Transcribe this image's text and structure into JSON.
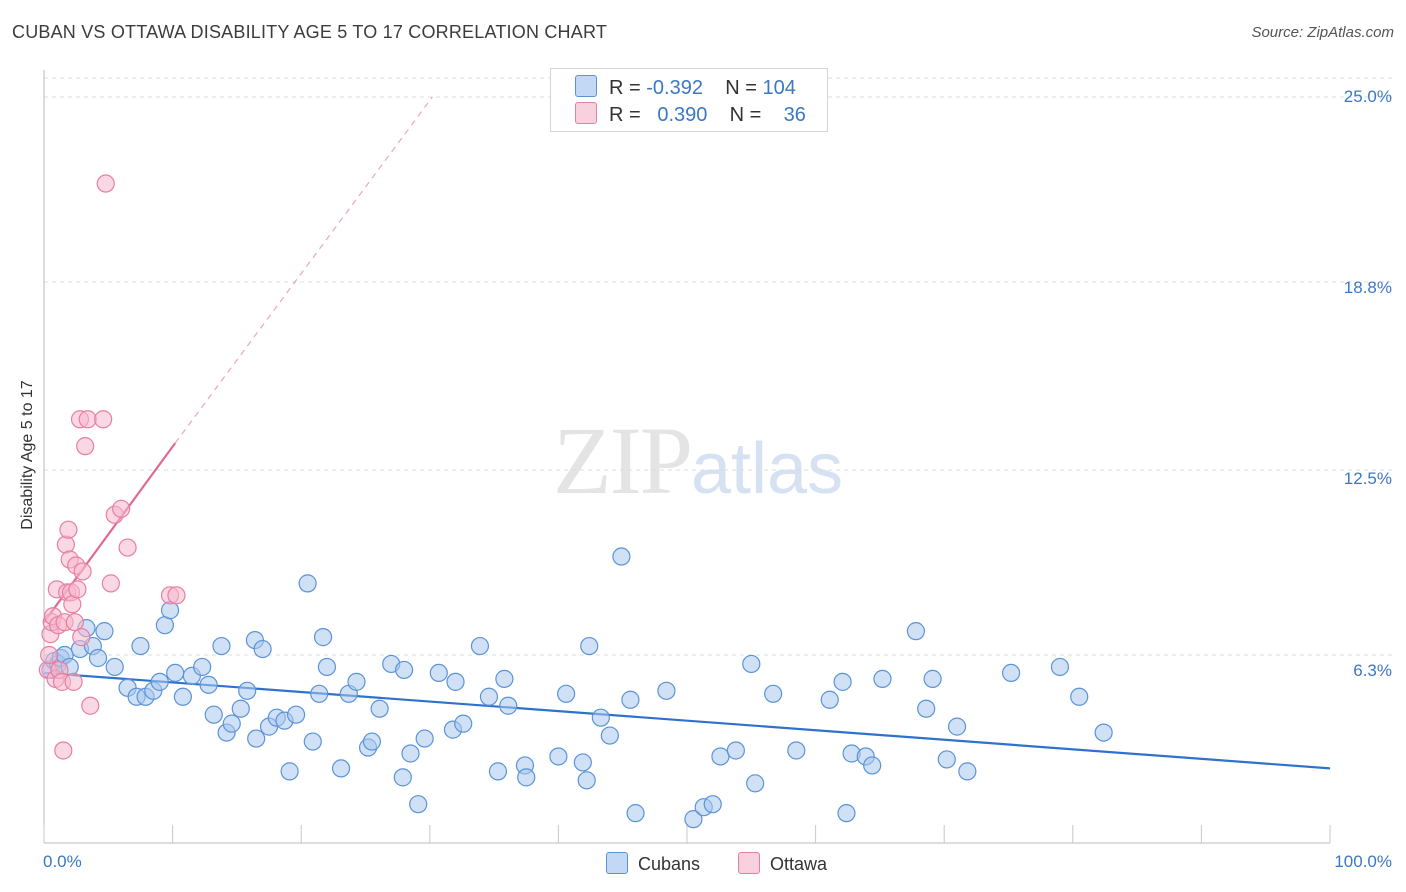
{
  "header": {
    "title": "CUBAN VS OTTAWA DISABILITY AGE 5 TO 17 CORRELATION CHART",
    "source": "Source: ZipAtlas.com"
  },
  "watermark": {
    "zip": "ZIP",
    "atlas": "atlas"
  },
  "legend": {
    "rows": [
      {
        "r_label": "R =",
        "r_value": "-0.392",
        "n_label": "N =",
        "n_value": "104",
        "color": "#a9c8ef"
      },
      {
        "r_label": "R =",
        "r_value": "0.390",
        "n_label": "N =",
        "n_value": "36",
        "color": "#f5b8cc"
      }
    ]
  },
  "bottom_legend": [
    {
      "label": "Cubans",
      "color": "#a9c8ef"
    },
    {
      "label": "Ottawa",
      "color": "#f5b8cc"
    }
  ],
  "colors": {
    "cubans_fill": "#a9c8ef",
    "cubans_stroke": "#5b93d8",
    "cubans_line": "#2f72cc",
    "ottawa_fill": "#f5b8cc",
    "ottawa_stroke": "#e77fa3",
    "ottawa_line": "#e06a95",
    "grid": "#dcdcdc",
    "axis_label": "#3b78c4"
  },
  "chart_data": {
    "type": "scatter",
    "title": "CUBAN VS OTTAWA DISABILITY AGE 5 TO 17 CORRELATION CHART",
    "xlabel": "",
    "ylabel": "Disability Age 5 to 17",
    "xlim": [
      0,
      100
    ],
    "ylim": [
      0,
      25.0
    ],
    "x_tick_labels": [
      "0.0%",
      "100.0%"
    ],
    "y_ticks": [
      6.3,
      12.5,
      18.8,
      25.0
    ],
    "y_tick_labels": [
      "6.3%",
      "12.5%",
      "18.8%",
      "25.0%"
    ],
    "grid": true,
    "legend_position": "top-center",
    "series": [
      {
        "name": "Cubans",
        "points": [
          [
            0.5,
            5.8
          ],
          [
            0.8,
            6.1
          ],
          [
            1.1,
            6.0
          ],
          [
            1.3,
            6.2
          ],
          [
            1.6,
            6.3
          ],
          [
            2.0,
            5.9
          ],
          [
            2.8,
            6.5
          ],
          [
            3.3,
            7.2
          ],
          [
            3.8,
            6.6
          ],
          [
            4.2,
            6.2
          ],
          [
            4.7,
            7.1
          ],
          [
            5.5,
            5.9
          ],
          [
            6.5,
            5.2
          ],
          [
            7.2,
            4.9
          ],
          [
            7.5,
            6.6
          ],
          [
            7.9,
            4.9
          ],
          [
            8.5,
            5.1
          ],
          [
            9.0,
            5.4
          ],
          [
            9.4,
            7.3
          ],
          [
            9.8,
            7.8
          ],
          [
            10.2,
            5.7
          ],
          [
            10.8,
            4.9
          ],
          [
            11.5,
            5.6
          ],
          [
            12.3,
            5.9
          ],
          [
            12.8,
            5.3
          ],
          [
            13.2,
            4.3
          ],
          [
            13.8,
            6.6
          ],
          [
            14.2,
            3.7
          ],
          [
            14.6,
            4.0
          ],
          [
            15.3,
            4.5
          ],
          [
            15.8,
            5.1
          ],
          [
            16.4,
            6.8
          ],
          [
            16.5,
            3.5
          ],
          [
            17.0,
            6.5
          ],
          [
            17.5,
            3.9
          ],
          [
            18.1,
            4.2
          ],
          [
            18.7,
            4.1
          ],
          [
            19.1,
            2.4
          ],
          [
            19.6,
            4.3
          ],
          [
            20.5,
            8.7
          ],
          [
            20.9,
            3.4
          ],
          [
            21.4,
            5.0
          ],
          [
            21.7,
            6.9
          ],
          [
            22.0,
            5.9
          ],
          [
            23.1,
            2.5
          ],
          [
            23.7,
            5.0
          ],
          [
            24.3,
            5.4
          ],
          [
            25.2,
            3.2
          ],
          [
            25.5,
            3.4
          ],
          [
            26.1,
            4.5
          ],
          [
            27.0,
            6.0
          ],
          [
            27.9,
            2.2
          ],
          [
            28.0,
            5.8
          ],
          [
            28.5,
            3.0
          ],
          [
            29.1,
            1.3
          ],
          [
            29.6,
            3.5
          ],
          [
            30.7,
            5.7
          ],
          [
            31.8,
            3.8
          ],
          [
            32.0,
            5.4
          ],
          [
            32.6,
            4.0
          ],
          [
            33.9,
            6.6
          ],
          [
            34.6,
            4.9
          ],
          [
            35.3,
            2.4
          ],
          [
            35.8,
            5.5
          ],
          [
            36.1,
            4.6
          ],
          [
            37.4,
            2.6
          ],
          [
            37.5,
            2.2
          ],
          [
            40.0,
            2.9
          ],
          [
            40.6,
            5.0
          ],
          [
            41.9,
            2.7
          ],
          [
            42.2,
            2.1
          ],
          [
            42.4,
            6.6
          ],
          [
            43.3,
            4.2
          ],
          [
            44.0,
            3.6
          ],
          [
            44.9,
            9.6
          ],
          [
            45.6,
            4.8
          ],
          [
            46.0,
            1.0
          ],
          [
            48.4,
            5.1
          ],
          [
            50.5,
            0.8
          ],
          [
            51.3,
            1.2
          ],
          [
            52.0,
            1.3
          ],
          [
            52.6,
            2.9
          ],
          [
            53.8,
            3.1
          ],
          [
            55.0,
            6.0
          ],
          [
            55.3,
            2.0
          ],
          [
            56.7,
            5.0
          ],
          [
            58.5,
            3.1
          ],
          [
            61.1,
            4.8
          ],
          [
            62.1,
            5.4
          ],
          [
            62.4,
            1.0
          ],
          [
            62.8,
            3.0
          ],
          [
            63.9,
            2.9
          ],
          [
            64.4,
            2.6
          ],
          [
            65.2,
            5.5
          ],
          [
            67.8,
            7.1
          ],
          [
            68.6,
            4.5
          ],
          [
            69.1,
            5.5
          ],
          [
            70.2,
            2.8
          ],
          [
            71.0,
            3.9
          ],
          [
            71.8,
            2.4
          ],
          [
            75.2,
            5.7
          ],
          [
            79.0,
            5.9
          ],
          [
            80.5,
            4.9
          ],
          [
            82.4,
            3.7
          ]
        ]
      },
      {
        "name": "Ottawa",
        "points": [
          [
            0.3,
            5.8
          ],
          [
            0.4,
            6.3
          ],
          [
            0.5,
            7.0
          ],
          [
            0.6,
            7.4
          ],
          [
            0.7,
            7.6
          ],
          [
            0.9,
            5.5
          ],
          [
            1.0,
            8.5
          ],
          [
            1.1,
            7.3
          ],
          [
            1.2,
            5.8
          ],
          [
            1.4,
            5.4
          ],
          [
            1.5,
            3.1
          ],
          [
            1.6,
            7.4
          ],
          [
            1.7,
            10.0
          ],
          [
            1.8,
            8.4
          ],
          [
            1.9,
            10.5
          ],
          [
            2.0,
            9.5
          ],
          [
            2.1,
            8.4
          ],
          [
            2.2,
            8.0
          ],
          [
            2.3,
            5.4
          ],
          [
            2.4,
            7.4
          ],
          [
            2.5,
            9.3
          ],
          [
            2.6,
            8.5
          ],
          [
            2.8,
            14.2
          ],
          [
            2.9,
            6.9
          ],
          [
            3.0,
            9.1
          ],
          [
            3.2,
            13.3
          ],
          [
            3.4,
            14.2
          ],
          [
            3.6,
            4.6
          ],
          [
            4.6,
            14.2
          ],
          [
            4.8,
            22.1
          ],
          [
            5.2,
            8.7
          ],
          [
            5.5,
            11.0
          ],
          [
            6.0,
            11.2
          ],
          [
            6.5,
            9.9
          ],
          [
            9.8,
            8.3
          ],
          [
            10.3,
            8.3
          ]
        ]
      }
    ],
    "trend_lines": [
      {
        "series": "Cubans",
        "x": [
          0,
          100
        ],
        "y": [
          5.7,
          2.5
        ]
      },
      {
        "series": "Ottawa",
        "x": [
          0,
          10.2
        ],
        "y": [
          7.4,
          13.4
        ],
        "dashed_extension_to": [
          30.2,
          25.0
        ]
      }
    ]
  }
}
